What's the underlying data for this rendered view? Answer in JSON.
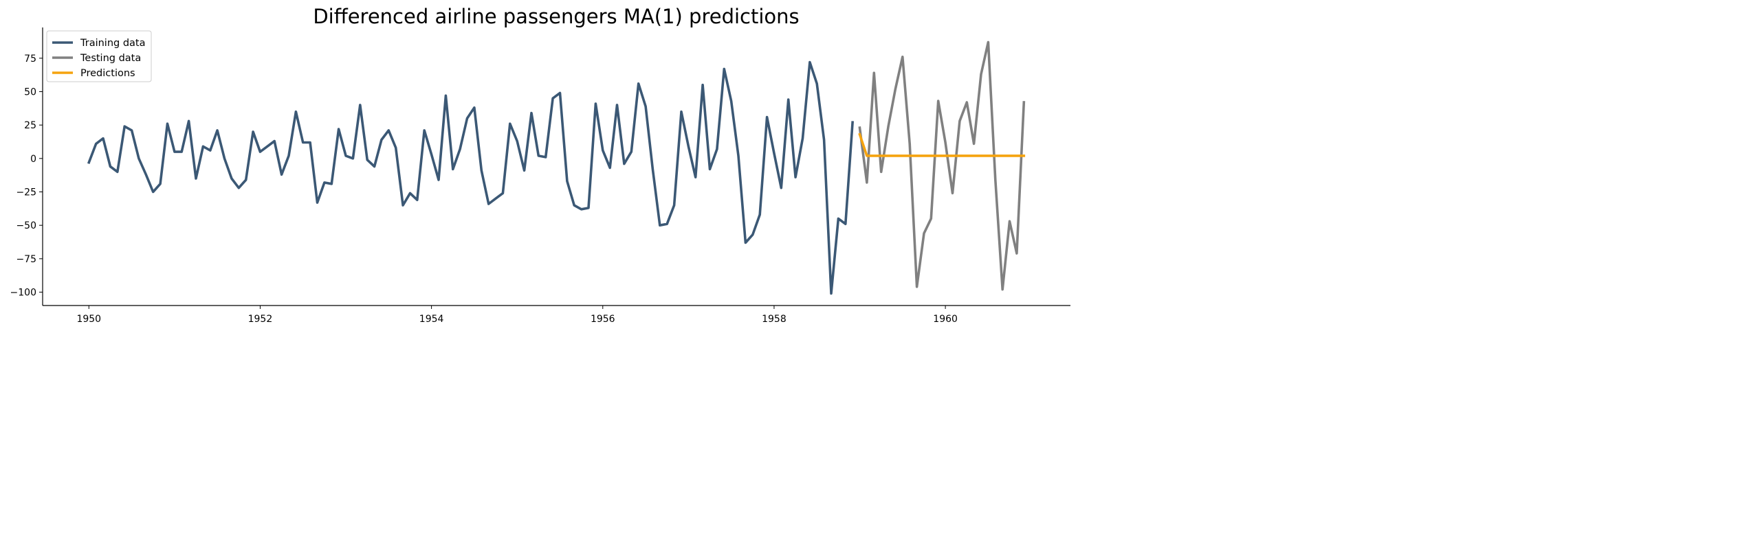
{
  "chart_data": {
    "type": "line",
    "title": "Differenced airline passengers MA(1) predictions",
    "xlabel": "",
    "ylabel": "",
    "xlim": [
      1949.46,
      1961.46
    ],
    "ylim": [
      -110,
      98
    ],
    "xticks": [
      1950,
      1952,
      1954,
      1956,
      1958,
      1960
    ],
    "xtick_labels": [
      "1950",
      "1952",
      "1954",
      "1956",
      "1958",
      "1960"
    ],
    "yticks": [
      -100,
      -75,
      -50,
      -25,
      0,
      25,
      50,
      75
    ],
    "ytick_labels": [
      "−100",
      "−75",
      "−50",
      "−25",
      "0",
      "25",
      "50",
      "75"
    ],
    "grid": false,
    "legend_position": "top-left",
    "series": [
      {
        "name": "Training data",
        "color": "#3b5875",
        "start": "1950-01",
        "frequency": "monthly",
        "values": [
          -3,
          11,
          15,
          -6,
          -10,
          24,
          21,
          0,
          -12,
          -25,
          -19,
          26,
          5,
          5,
          28,
          -15,
          9,
          6,
          21,
          0,
          -15,
          -22,
          -16,
          20,
          5,
          9,
          13,
          -12,
          2,
          35,
          12,
          12,
          -33,
          -18,
          -19,
          22,
          2,
          0,
          40,
          -1,
          -6,
          14,
          21,
          8,
          -35,
          -26,
          -31,
          21,
          3,
          -16,
          47,
          -8,
          7,
          30,
          38,
          -9,
          -34,
          -30,
          -26,
          26,
          13,
          -9,
          34,
          2,
          1,
          45,
          49,
          -17,
          -35,
          -38,
          -37,
          41,
          6,
          -7,
          40,
          -4,
          5,
          56,
          39,
          -8,
          -50,
          -49,
          -35,
          35,
          9,
          -14,
          55,
          -8,
          7,
          67,
          43,
          2,
          -63,
          -57,
          -42,
          31,
          4,
          -22,
          44,
          -14,
          15,
          72,
          56,
          14,
          -101,
          -45,
          -49,
          27
        ]
      },
      {
        "name": "Testing data",
        "color": "#808080",
        "start": "1959-01",
        "frequency": "monthly",
        "values": [
          23,
          -18,
          64,
          -10,
          24,
          52,
          76,
          11,
          -96,
          -56,
          -45,
          43,
          12,
          -26,
          28,
          42,
          11,
          63,
          87,
          -16,
          -98,
          -47,
          -71,
          42
        ]
      },
      {
        "name": "Predictions",
        "color": "#f5a30f",
        "start": "1959-01",
        "frequency": "monthly",
        "values": [
          18,
          2,
          2,
          2,
          2,
          2,
          2,
          2,
          2,
          2,
          2,
          2,
          2,
          2,
          2,
          2,
          2,
          2,
          2,
          2,
          2,
          2,
          2,
          2
        ]
      }
    ]
  }
}
